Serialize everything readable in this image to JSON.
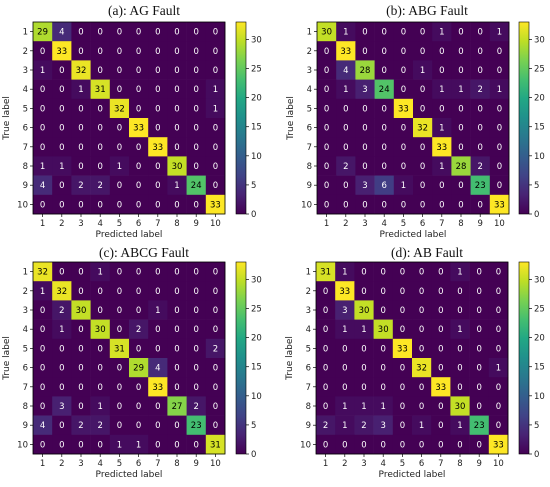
{
  "chart_data": [
    {
      "type": "heatmap",
      "title": "(a): AG Fault",
      "xlabel": "Predicted label",
      "ylabel": "True label",
      "labels": [
        "1",
        "2",
        "3",
        "4",
        "5",
        "6",
        "7",
        "8",
        "9",
        "10"
      ],
      "matrix": [
        [
          29,
          4,
          0,
          0,
          0,
          0,
          0,
          0,
          0,
          0
        ],
        [
          0,
          33,
          0,
          0,
          0,
          0,
          0,
          0,
          0,
          0
        ],
        [
          1,
          0,
          32,
          0,
          0,
          0,
          0,
          0,
          0,
          0
        ],
        [
          0,
          0,
          1,
          31,
          0,
          0,
          0,
          0,
          0,
          1
        ],
        [
          0,
          0,
          0,
          0,
          32,
          0,
          0,
          0,
          0,
          1
        ],
        [
          0,
          0,
          0,
          0,
          0,
          33,
          0,
          0,
          0,
          0
        ],
        [
          0,
          0,
          0,
          0,
          0,
          0,
          33,
          0,
          0,
          0
        ],
        [
          1,
          1,
          0,
          0,
          1,
          0,
          0,
          30,
          0,
          0
        ],
        [
          4,
          0,
          2,
          2,
          0,
          0,
          0,
          1,
          24,
          0
        ],
        [
          0,
          0,
          0,
          0,
          0,
          0,
          0,
          0,
          0,
          33
        ]
      ],
      "colorbar_ticks": [
        0,
        5,
        10,
        15,
        20,
        25,
        30
      ],
      "vmin": 0,
      "vmax": 33
    },
    {
      "type": "heatmap",
      "title": "(b): ABG Fault",
      "xlabel": "Predicted label",
      "ylabel": "True label",
      "labels": [
        "1",
        "2",
        "3",
        "4",
        "5",
        "6",
        "7",
        "8",
        "9",
        "10"
      ],
      "matrix": [
        [
          30,
          1,
          0,
          0,
          0,
          0,
          1,
          0,
          0,
          1
        ],
        [
          0,
          33,
          0,
          0,
          0,
          0,
          0,
          0,
          0,
          0
        ],
        [
          0,
          4,
          28,
          0,
          0,
          1,
          0,
          0,
          0,
          0
        ],
        [
          0,
          1,
          3,
          24,
          0,
          0,
          1,
          1,
          2,
          1
        ],
        [
          0,
          0,
          0,
          0,
          33,
          0,
          0,
          0,
          0,
          0
        ],
        [
          0,
          0,
          0,
          0,
          0,
          32,
          1,
          0,
          0,
          0
        ],
        [
          0,
          0,
          0,
          0,
          0,
          0,
          33,
          0,
          0,
          0
        ],
        [
          0,
          2,
          0,
          0,
          0,
          0,
          1,
          28,
          2,
          0
        ],
        [
          0,
          0,
          3,
          6,
          1,
          0,
          0,
          0,
          23,
          0
        ],
        [
          0,
          0,
          0,
          0,
          0,
          0,
          0,
          0,
          0,
          33
        ]
      ],
      "colorbar_ticks": [
        0,
        5,
        10,
        15,
        20,
        25,
        30
      ],
      "vmin": 0,
      "vmax": 33
    },
    {
      "type": "heatmap",
      "title": "(c): ABCG Fault",
      "xlabel": "Predicted label",
      "ylabel": "True label",
      "labels": [
        "1",
        "2",
        "3",
        "4",
        "5",
        "6",
        "7",
        "8",
        "9",
        "10"
      ],
      "matrix": [
        [
          32,
          0,
          0,
          1,
          0,
          0,
          0,
          0,
          0,
          0
        ],
        [
          1,
          32,
          0,
          0,
          0,
          0,
          0,
          0,
          0,
          0
        ],
        [
          0,
          2,
          30,
          0,
          0,
          0,
          1,
          0,
          0,
          0
        ],
        [
          0,
          1,
          0,
          30,
          0,
          2,
          0,
          0,
          0,
          0
        ],
        [
          0,
          0,
          0,
          0,
          31,
          0,
          0,
          0,
          0,
          2
        ],
        [
          0,
          0,
          0,
          0,
          0,
          29,
          4,
          0,
          0,
          0
        ],
        [
          0,
          0,
          0,
          0,
          0,
          0,
          33,
          0,
          0,
          0
        ],
        [
          0,
          3,
          0,
          1,
          0,
          0,
          0,
          27,
          2,
          0
        ],
        [
          4,
          0,
          2,
          2,
          0,
          0,
          0,
          0,
          23,
          0
        ],
        [
          0,
          0,
          0,
          0,
          1,
          1,
          0,
          0,
          0,
          31
        ]
      ],
      "colorbar_ticks": [
        0,
        5,
        10,
        15,
        20,
        25,
        30
      ],
      "vmin": 0,
      "vmax": 33
    },
    {
      "type": "heatmap",
      "title": "(d): AB Fault",
      "xlabel": "Predicted label",
      "ylabel": "True label",
      "labels": [
        "1",
        "2",
        "3",
        "4",
        "5",
        "6",
        "7",
        "8",
        "9",
        "10"
      ],
      "matrix": [
        [
          31,
          1,
          0,
          0,
          0,
          0,
          0,
          1,
          0,
          0
        ],
        [
          0,
          33,
          0,
          0,
          0,
          0,
          0,
          0,
          0,
          0
        ],
        [
          0,
          3,
          30,
          0,
          0,
          0,
          0,
          0,
          0,
          0
        ],
        [
          0,
          1,
          1,
          30,
          0,
          0,
          0,
          1,
          0,
          0
        ],
        [
          0,
          0,
          0,
          0,
          33,
          0,
          0,
          0,
          0,
          0
        ],
        [
          0,
          0,
          0,
          0,
          0,
          32,
          0,
          0,
          0,
          1
        ],
        [
          0,
          0,
          0,
          0,
          0,
          0,
          33,
          0,
          0,
          0
        ],
        [
          0,
          1,
          1,
          1,
          0,
          0,
          0,
          30,
          0,
          0
        ],
        [
          2,
          1,
          2,
          3,
          0,
          1,
          0,
          1,
          23,
          0
        ],
        [
          0,
          0,
          0,
          0,
          0,
          0,
          0,
          0,
          0,
          33
        ]
      ],
      "colorbar_ticks": [
        0,
        5,
        10,
        15,
        20,
        25,
        30
      ],
      "vmin": 0,
      "vmax": 33
    }
  ]
}
